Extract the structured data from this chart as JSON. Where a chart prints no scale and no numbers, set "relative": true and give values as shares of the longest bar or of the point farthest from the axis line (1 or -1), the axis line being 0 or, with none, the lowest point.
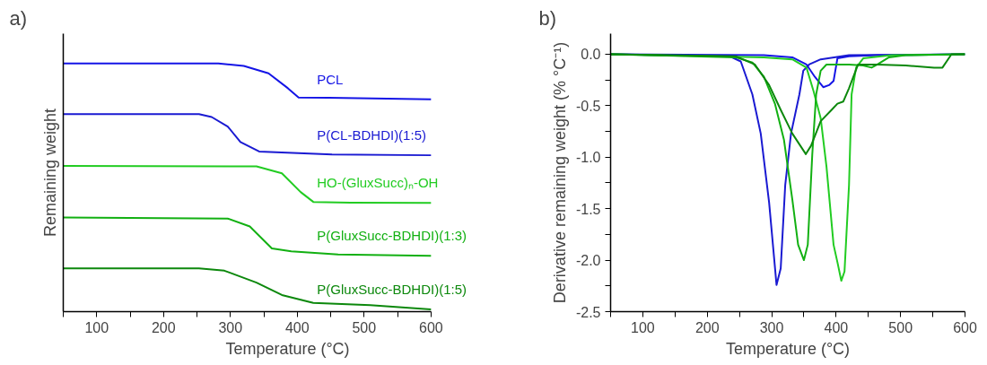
{
  "chart_data": [
    {
      "type": "line",
      "relative": true,
      "tick_labels": "x",
      "xlabel": "Temperature (°C)",
      "ylabel": "Remaining weight",
      "annotations": [
        "a)"
      ],
      "xlim": [
        50,
        600
      ],
      "xticks": [
        {
          "value": 50,
          "label": null
        },
        100,
        {
          "value": 150,
          "label": null
        },
        200,
        {
          "value": 250,
          "label": null
        },
        300,
        {
          "value": 350,
          "label": null
        },
        400,
        {
          "value": 450,
          "label": null
        },
        500,
        {
          "value": 550,
          "label": null
        },
        600
      ],
      "grid": false,
      "legend": false,
      "line_style": "solid",
      "marker": "none",
      "series": [
        {
          "name": "PCL",
          "color": "#1414e6",
          "x": [
            50,
            282,
            320,
            357,
            386,
            402,
            447,
            600
          ],
          "values": [
            1.0,
            1.0,
            0.99,
            0.96,
            0.9,
            0.863,
            0.862,
            0.855
          ]
        },
        {
          "name": "P(CL-BDHDI)(1:5)",
          "color": "#1a1ad2",
          "x": [
            50,
            253,
            272,
            296,
            315,
            343,
            452,
            600
          ],
          "values": [
            0.796,
            0.796,
            0.784,
            0.746,
            0.683,
            0.645,
            0.633,
            0.63
          ]
        },
        {
          "name": "HO-(GluxSucc)ₙ-OH",
          "color": "#22cc22",
          "x": [
            50,
            339,
            377,
            405,
            424,
            480,
            600
          ],
          "values": [
            0.587,
            0.585,
            0.557,
            0.482,
            0.442,
            0.439,
            0.438
          ]
        },
        {
          "name": "P(GluxSucc-BDHDI)(1:3)",
          "color": "#12b012",
          "x": [
            50,
            296,
            329,
            362,
            391,
            461,
            600
          ],
          "values": [
            0.379,
            0.375,
            0.343,
            0.255,
            0.243,
            0.23,
            0.225
          ]
        },
        {
          "name": "P(GluxSucc-BDHDI)(1:5)",
          "color": "#0c880c",
          "x": [
            50,
            253,
            291,
            339,
            377,
            424,
            509,
            600
          ],
          "values": [
            0.174,
            0.174,
            0.165,
            0.117,
            0.067,
            0.035,
            0.026,
            0.009
          ]
        }
      ]
    },
    {
      "type": "line",
      "xlabel": "Temperature (°C)",
      "ylabel": "Derivative remaining weight (% °C⁻¹)",
      "annotations": [
        "b)"
      ],
      "xlim": [
        50,
        600
      ],
      "ylim": [
        -2.5,
        0.2
      ],
      "xticks": [
        {
          "value": 50,
          "label": null
        },
        100,
        {
          "value": 150,
          "label": null
        },
        200,
        {
          "value": 250,
          "label": null
        },
        300,
        {
          "value": 350,
          "label": null
        },
        400,
        {
          "value": 450,
          "label": null
        },
        500,
        {
          "value": 550,
          "label": null
        },
        600
      ],
      "yticks": [
        {
          "value": -2.5,
          "label": "-2.5"
        },
        {
          "value": -2.25,
          "label": null
        },
        {
          "value": -2.0,
          "label": "-2.0"
        },
        {
          "value": -1.75,
          "label": null
        },
        {
          "value": -1.5,
          "label": "-1.5"
        },
        {
          "value": -1.25,
          "label": null
        },
        {
          "value": -1.0,
          "label": "-1.0"
        },
        {
          "value": -0.75,
          "label": null
        },
        {
          "value": -0.5,
          "label": "-0.5"
        },
        {
          "value": -0.25,
          "label": null
        },
        {
          "value": 0,
          "label": "0.0"
        }
      ],
      "grid": false,
      "legend": false,
      "line_style": "solid",
      "marker": "none",
      "series": [
        {
          "color": "#1414e6",
          "x": [
            50,
            288,
            332,
            354,
            367,
            380,
            389,
            396,
            402,
            420,
            464,
            600
          ],
          "values": [
            0,
            -0.01,
            -0.03,
            -0.1,
            -0.22,
            -0.32,
            -0.3,
            -0.26,
            -0.04,
            -0.02,
            -0.01,
            0
          ]
        },
        {
          "color": "#1a1ad2",
          "x": [
            50,
            235,
            252,
            270,
            283,
            296,
            307.5,
            314,
            321,
            330,
            343,
            349,
            358,
            376,
            420,
            600
          ],
          "values": [
            0,
            -0.02,
            -0.07,
            -0.39,
            -0.77,
            -1.44,
            -2.24,
            -2.08,
            -1.27,
            -0.77,
            -0.39,
            -0.16,
            -0.1,
            -0.05,
            -0.01,
            0
          ]
        },
        {
          "color": "#22cc22",
          "x": [
            50,
            288,
            332,
            354,
            365,
            376,
            385,
            396,
            402,
            408,
            413,
            420,
            424,
            431,
            442,
            486,
            600
          ],
          "values": [
            0,
            -0.03,
            -0.05,
            -0.13,
            -0.36,
            -0.62,
            -1.09,
            -1.85,
            -2.02,
            -2.2,
            -2.11,
            -1.27,
            -0.39,
            -0.13,
            -0.04,
            -0.01,
            0
          ]
        },
        {
          "color": "#12b012",
          "x": [
            50,
            244,
            270,
            288,
            305,
            319,
            332,
            341,
            350,
            356,
            363,
            369,
            376,
            385,
            420,
            442,
            455,
            464,
            482,
            508,
            600
          ],
          "values": [
            0,
            -0.03,
            -0.08,
            -0.22,
            -0.48,
            -0.83,
            -1.41,
            -1.85,
            -2.0,
            -1.85,
            -0.97,
            -0.39,
            -0.16,
            -0.1,
            -0.1,
            -0.11,
            -0.13,
            -0.1,
            -0.03,
            -0.01,
            0
          ]
        },
        {
          "color": "#0c880c",
          "x": [
            50,
            244,
            274,
            296,
            314,
            332,
            353,
            361,
            376,
            393,
            402,
            411,
            420,
            434,
            464,
            508,
            552,
            565,
            579,
            600
          ],
          "values": [
            0,
            -0.02,
            -0.1,
            -0.3,
            -0.54,
            -0.77,
            -0.97,
            -0.89,
            -0.65,
            -0.54,
            -0.48,
            -0.46,
            -0.33,
            -0.1,
            -0.1,
            -0.11,
            -0.13,
            -0.13,
            0,
            0
          ]
        }
      ]
    }
  ]
}
